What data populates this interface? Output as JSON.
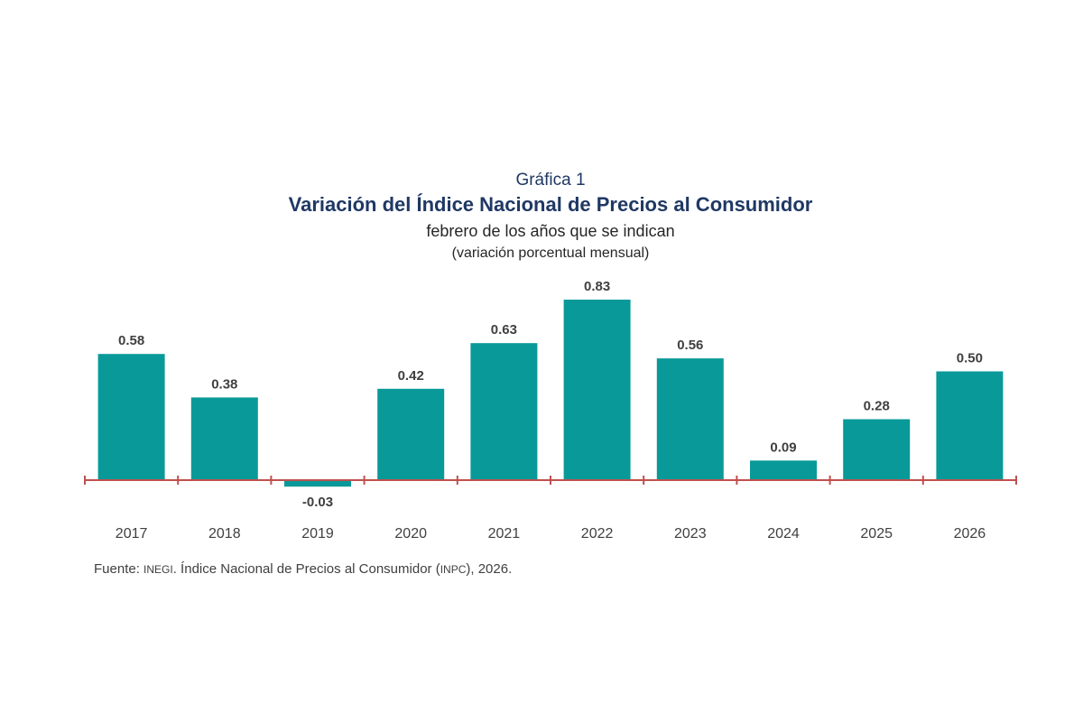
{
  "chart_data": {
    "type": "bar",
    "label": "Gráfica 1",
    "title": "Variación del Índice Nacional de Precios al Consumidor",
    "subtitle": "febrero de los años que se indican",
    "unit": "(variación porcentual mensual)",
    "categories": [
      "2017",
      "2018",
      "2019",
      "2020",
      "2021",
      "2022",
      "2023",
      "2024",
      "2025",
      "2026"
    ],
    "values": [
      0.58,
      0.38,
      -0.03,
      0.42,
      0.63,
      0.83,
      0.56,
      0.09,
      0.28,
      0.5
    ],
    "value_labels": [
      "0.58",
      "0.38",
      "-0.03",
      "0.42",
      "0.63",
      "0.83",
      "0.56",
      "0.09",
      "0.28",
      "0.50"
    ],
    "bar_color": "#0a9999",
    "axis_color": "#c0504d",
    "ylim": [
      -0.03,
      0.83
    ],
    "grid": false,
    "legend": "none"
  },
  "source": {
    "prefix": "Fuente: ",
    "org": "INEGI",
    "middle": ". Índice Nacional de Precios al Consumidor (",
    "abbr": "INPC",
    "suffix": "), 2026."
  }
}
